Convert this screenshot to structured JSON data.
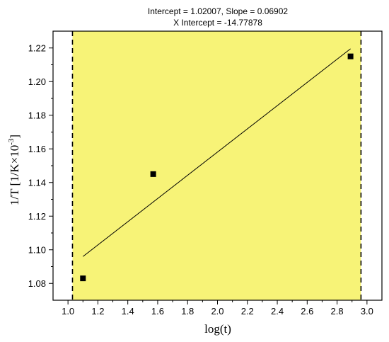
{
  "chart_data": {
    "type": "scatter",
    "title_line1": "Intercept = 1.02007, Slope = 0.06902",
    "title_line2": "X Intercept = -14.77878",
    "xlabel": "log(t)",
    "ylabel_main": "1/T [1/K×10",
    "ylabel_sup": "-3",
    "ylabel_end": "]",
    "xlim": [
      0.9,
      3.1
    ],
    "ylim": [
      1.07,
      1.23
    ],
    "x_ticks": [
      "1.0",
      "1.2",
      "1.4",
      "1.6",
      "1.8",
      "2.0",
      "2.2",
      "2.4",
      "2.6",
      "2.8",
      "3.0"
    ],
    "y_ticks": [
      "1.08",
      "1.10",
      "1.12",
      "1.14",
      "1.16",
      "1.18",
      "1.20",
      "1.22"
    ],
    "points": [
      {
        "x": 1.1,
        "y": 1.083
      },
      {
        "x": 1.57,
        "y": 1.145
      },
      {
        "x": 2.89,
        "y": 1.215
      }
    ],
    "fit_line": {
      "x_start": 1.1,
      "x_end": 2.89,
      "intercept": 1.02007,
      "slope": 0.06902
    },
    "shaded_region": {
      "x_from": 1.03,
      "x_to": 2.96
    },
    "colors": {
      "shade": "#f7f377",
      "points": "#000000",
      "line": "#000000",
      "boundary": "#000000"
    }
  }
}
